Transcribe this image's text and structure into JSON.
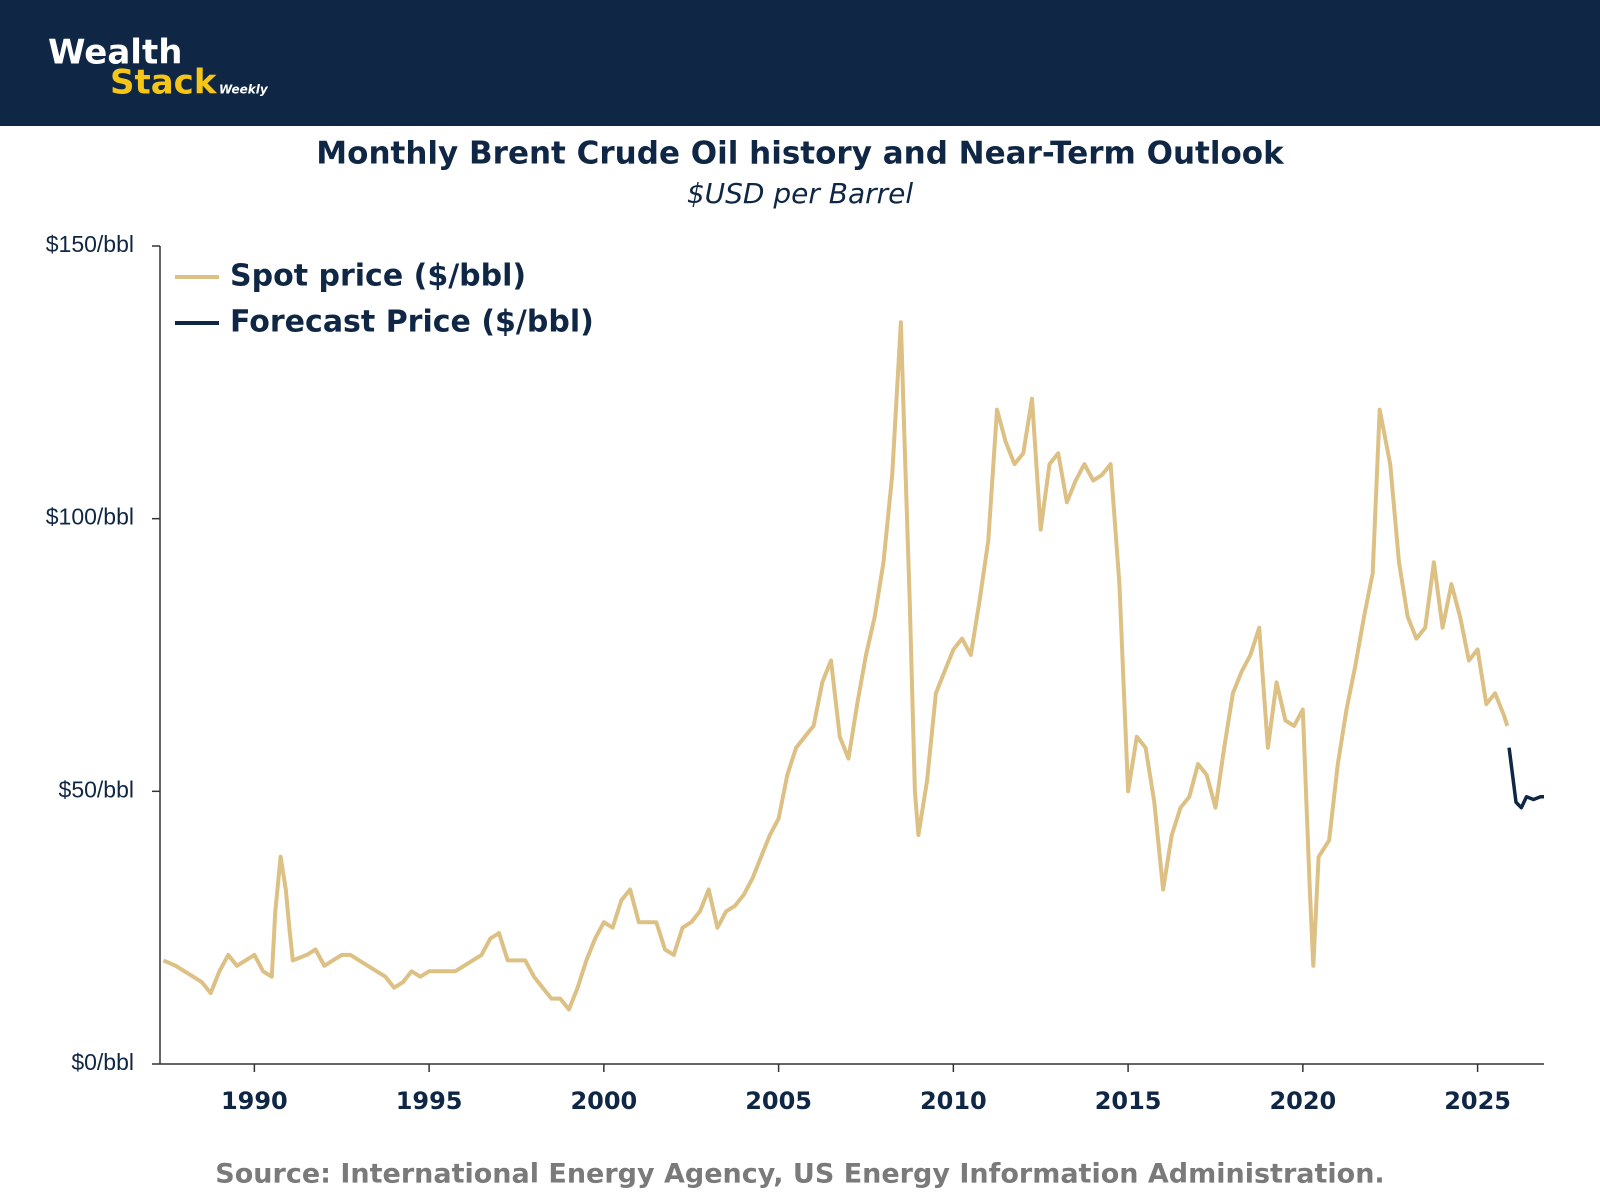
{
  "header": {
    "logo_top": "Wealth",
    "logo_bottom": "Stack",
    "logo_tag": "Weekly"
  },
  "chart_data": {
    "type": "line",
    "title": "Monthly Brent Crude Oil history and Near-Term Outlook",
    "subtitle": "$USD per Barrel",
    "source": "Source: International Energy Agency, US Energy Information Administration.",
    "xlim": [
      1987.3,
      2026.9
    ],
    "xticks": [
      1990,
      1995,
      2000,
      2005,
      2010,
      2015,
      2020,
      2025
    ],
    "ylim": [
      0,
      150
    ],
    "yticks": [
      {
        "value": 0,
        "label": "$0/bbl"
      },
      {
        "value": 50,
        "label": "$50/bbl"
      },
      {
        "value": 100,
        "label": "$100/bbl"
      },
      {
        "value": 150,
        "label": "$150/bbl"
      }
    ],
    "legend": "upper-left",
    "series": [
      {
        "name": "Spot price ($/bbl)",
        "color": "#dcc084",
        "x": [
          1987.4,
          1987.75,
          1988.0,
          1988.25,
          1988.5,
          1988.75,
          1989.0,
          1989.25,
          1989.5,
          1989.75,
          1990.0,
          1990.25,
          1990.5,
          1990.6,
          1990.75,
          1990.9,
          1991.0,
          1991.1,
          1991.5,
          1991.75,
          1992.0,
          1992.5,
          1992.75,
          1993.0,
          1993.5,
          1993.75,
          1994.0,
          1994.25,
          1994.5,
          1994.75,
          1995.0,
          1995.5,
          1995.75,
          1996.0,
          1996.5,
          1996.75,
          1997.0,
          1997.25,
          1997.5,
          1997.75,
          1998.0,
          1998.25,
          1998.5,
          1998.75,
          1999.0,
          1999.25,
          1999.5,
          1999.75,
          2000.0,
          2000.25,
          2000.5,
          2000.75,
          2001.0,
          2001.25,
          2001.5,
          2001.75,
          2002.0,
          2002.25,
          2002.5,
          2002.75,
          2003.0,
          2003.25,
          2003.5,
          2003.75,
          2004.0,
          2004.25,
          2004.5,
          2004.75,
          2005.0,
          2005.25,
          2005.5,
          2005.75,
          2006.0,
          2006.25,
          2006.5,
          2006.75,
          2007.0,
          2007.25,
          2007.5,
          2007.75,
          2008.0,
          2008.25,
          2008.5,
          2008.6,
          2008.75,
          2008.9,
          2009.0,
          2009.25,
          2009.5,
          2009.75,
          2010.0,
          2010.25,
          2010.5,
          2010.75,
          2011.0,
          2011.25,
          2011.5,
          2011.75,
          2012.0,
          2012.25,
          2012.5,
          2012.75,
          2013.0,
          2013.25,
          2013.5,
          2013.75,
          2014.0,
          2014.25,
          2014.5,
          2014.75,
          2015.0,
          2015.25,
          2015.5,
          2015.75,
          2016.0,
          2016.25,
          2016.5,
          2016.75,
          2017.0,
          2017.25,
          2017.5,
          2017.75,
          2018.0,
          2018.25,
          2018.5,
          2018.75,
          2019.0,
          2019.25,
          2019.5,
          2019.75,
          2020.0,
          2020.2,
          2020.3,
          2020.45,
          2020.75,
          2021.0,
          2021.25,
          2021.5,
          2021.75,
          2022.0,
          2022.2,
          2022.5,
          2022.75,
          2023.0,
          2023.25,
          2023.5,
          2023.75,
          2024.0,
          2024.25,
          2024.5,
          2024.75,
          2025.0,
          2025.25,
          2025.5,
          2025.75,
          2025.85
        ],
        "values": [
          19,
          18,
          17,
          16,
          15,
          13,
          17,
          20,
          18,
          19,
          20,
          17,
          16,
          28,
          38,
          32,
          25,
          19,
          20,
          21,
          18,
          20,
          20,
          19,
          17,
          16,
          14,
          15,
          17,
          16,
          17,
          17,
          17,
          18,
          20,
          23,
          24,
          19,
          19,
          19,
          16,
          14,
          12,
          12,
          10,
          14,
          19,
          23,
          26,
          25,
          30,
          32,
          26,
          26,
          26,
          21,
          20,
          25,
          26,
          28,
          32,
          25,
          28,
          29,
          31,
          34,
          38,
          42,
          45,
          53,
          58,
          60,
          62,
          70,
          74,
          60,
          56,
          66,
          75,
          82,
          92,
          108,
          136,
          115,
          85,
          50,
          42,
          52,
          68,
          72,
          76,
          78,
          75,
          85,
          96,
          120,
          114,
          110,
          112,
          122,
          98,
          110,
          112,
          103,
          107,
          110,
          107,
          108,
          110,
          88,
          50,
          60,
          58,
          48,
          32,
          42,
          47,
          49,
          55,
          53,
          47,
          58,
          68,
          72,
          75,
          80,
          58,
          70,
          63,
          62,
          65,
          32,
          18,
          38,
          41,
          55,
          65,
          73,
          82,
          90,
          120,
          110,
          92,
          82,
          78,
          80,
          92,
          80,
          88,
          82,
          74,
          76,
          66,
          68,
          64,
          62
        ]
      },
      {
        "name": "Forecast Price ($/bbl)",
        "color": "#0f2744",
        "x": [
          2025.9,
          2026.1,
          2026.25,
          2026.4,
          2026.6,
          2026.8,
          2026.9
        ],
        "values": [
          58,
          48,
          47,
          49,
          48.5,
          49,
          49
        ]
      }
    ]
  }
}
